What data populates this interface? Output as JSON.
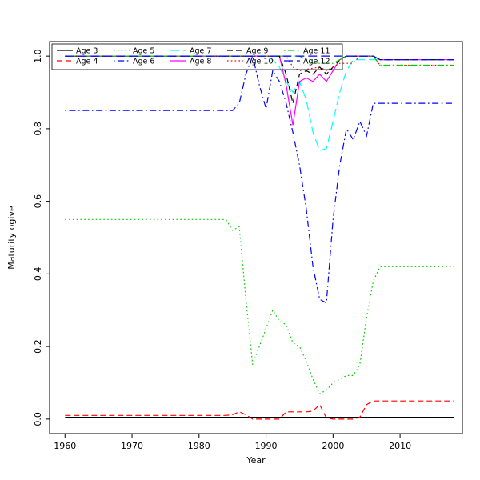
{
  "chart_data": {
    "type": "line",
    "title": "",
    "xlabel": "Year",
    "ylabel": "Maturity ogive",
    "xlim": [
      1957.7,
      2019.3
    ],
    "ylim": [
      -0.04,
      1.04
    ],
    "x_ticks": [
      1960,
      1970,
      1980,
      1990,
      2000,
      2010
    ],
    "y_ticks": [
      0.0,
      0.2,
      0.4,
      0.6,
      0.8,
      1.0
    ],
    "grid": false,
    "legend_position": "top-left",
    "legend_ncol": 5,
    "series": [
      {
        "name": "Age 3",
        "color": "#000000",
        "linestyle": "solid",
        "points": [
          [
            1960,
            0.005
          ],
          [
            2018,
            0.005
          ]
        ]
      },
      {
        "name": "Age 4",
        "color": "#FF0000",
        "linestyle": "dashed",
        "points": [
          [
            1960,
            0.01
          ],
          [
            1984,
            0.01
          ],
          [
            1985,
            0.012
          ],
          [
            1986,
            0.02
          ],
          [
            1987,
            0.012
          ],
          [
            1988,
            0
          ],
          [
            1992,
            0
          ],
          [
            1993,
            0.02
          ],
          [
            1996,
            0.02
          ],
          [
            1997,
            0.022
          ],
          [
            1998,
            0.04
          ],
          [
            1999,
            0.003
          ],
          [
            2000,
            0
          ],
          [
            2003,
            0
          ],
          [
            2004,
            0.005
          ],
          [
            2005,
            0.04
          ],
          [
            2006,
            0.05
          ],
          [
            2018,
            0.05
          ]
        ]
      },
      {
        "name": "Age 5",
        "color": "#00CD00",
        "linestyle": "dotted",
        "points": [
          [
            1960,
            0.55
          ],
          [
            1984,
            0.55
          ],
          [
            1985,
            0.52
          ],
          [
            1986,
            0.53
          ],
          [
            1987,
            0.33
          ],
          [
            1988,
            0.15
          ],
          [
            1989,
            0.2
          ],
          [
            1990,
            0.25
          ],
          [
            1991,
            0.3
          ],
          [
            1992,
            0.27
          ],
          [
            1993,
            0.26
          ],
          [
            1994,
            0.21
          ],
          [
            1995,
            0.2
          ],
          [
            1996,
            0.16
          ],
          [
            1997,
            0.11
          ],
          [
            1998,
            0.07
          ],
          [
            1999,
            0.08
          ],
          [
            2000,
            0.1
          ],
          [
            2001,
            0.11
          ],
          [
            2002,
            0.12
          ],
          [
            2003,
            0.12
          ],
          [
            2004,
            0.15
          ],
          [
            2005,
            0.28
          ],
          [
            2006,
            0.38
          ],
          [
            2007,
            0.42
          ],
          [
            2018,
            0.42
          ]
        ]
      },
      {
        "name": "Age 6",
        "color": "#0000FF",
        "linestyle": "dotdash",
        "points": [
          [
            1960,
            0.85
          ],
          [
            1985,
            0.85
          ],
          [
            1986,
            0.87
          ],
          [
            1987,
            0.95
          ],
          [
            1988,
            1
          ],
          [
            1989,
            0.92
          ],
          [
            1990,
            0.855
          ],
          [
            1991,
            0.96
          ],
          [
            1992,
            0.93
          ],
          [
            1993,
            0.87
          ],
          [
            1994,
            0.79
          ],
          [
            1995,
            0.7
          ],
          [
            1996,
            0.58
          ],
          [
            1997,
            0.42
          ],
          [
            1998,
            0.33
          ],
          [
            1999,
            0.32
          ],
          [
            2000,
            0.55
          ],
          [
            2001,
            0.7
          ],
          [
            2002,
            0.8
          ],
          [
            2003,
            0.77
          ],
          [
            2004,
            0.82
          ],
          [
            2005,
            0.78
          ],
          [
            2006,
            0.87
          ],
          [
            2018,
            0.87
          ]
        ]
      },
      {
        "name": "Age 7",
        "color": "#00FFFF",
        "linestyle": "longdash",
        "points": [
          [
            1960,
            1
          ],
          [
            1990,
            1
          ],
          [
            1991,
            0.99
          ],
          [
            1992,
            0.97
          ],
          [
            1993,
            0.93
          ],
          [
            1994,
            0.9
          ],
          [
            1995,
            0.93
          ],
          [
            1996,
            0.88
          ],
          [
            1997,
            0.79
          ],
          [
            1998,
            0.74
          ],
          [
            1999,
            0.745
          ],
          [
            2000,
            0.82
          ],
          [
            2001,
            0.9
          ],
          [
            2002,
            0.96
          ],
          [
            2003,
            0.99
          ],
          [
            2018,
            0.99
          ]
        ]
      },
      {
        "name": "Age 8",
        "color": "#FF00FF",
        "linestyle": "solid",
        "points": [
          [
            1960,
            1
          ],
          [
            1992,
            1
          ],
          [
            1993,
            0.92
          ],
          [
            1994,
            0.81
          ],
          [
            1995,
            0.93
          ],
          [
            1996,
            0.94
          ],
          [
            1997,
            0.93
          ],
          [
            1998,
            0.95
          ],
          [
            1999,
            0.93
          ],
          [
            2000,
            0.96
          ],
          [
            2001,
            0.99
          ],
          [
            2002,
            1
          ],
          [
            2006,
            1
          ],
          [
            2007,
            0.99
          ],
          [
            2018,
            0.99
          ]
        ]
      },
      {
        "name": "Age 9",
        "color": "#000000",
        "linestyle": "dashed",
        "points": [
          [
            1960,
            1
          ],
          [
            1992,
            1
          ],
          [
            1993,
            0.95
          ],
          [
            1994,
            0.87
          ],
          [
            1995,
            0.95
          ],
          [
            1996,
            0.96
          ],
          [
            1997,
            0.95
          ],
          [
            1998,
            0.97
          ],
          [
            1999,
            0.95
          ],
          [
            2000,
            0.97
          ],
          [
            2001,
            0.99
          ],
          [
            2002,
            1
          ],
          [
            2006,
            1
          ],
          [
            2007,
            0.99
          ],
          [
            2018,
            0.99
          ]
        ]
      },
      {
        "name": "Age 10",
        "color": "#FF0000",
        "linestyle": "dotted",
        "points": [
          [
            1960,
            1
          ],
          [
            1993,
            1
          ],
          [
            1994,
            0.97
          ],
          [
            1995,
            0.96
          ],
          [
            1998,
            0.97
          ],
          [
            1999,
            0.96
          ],
          [
            2000,
            0.97
          ],
          [
            2001,
            0.98
          ],
          [
            2003,
            0.98
          ],
          [
            2004,
            1
          ],
          [
            2006,
            1
          ],
          [
            2007,
            0.975
          ],
          [
            2018,
            0.975
          ]
        ]
      },
      {
        "name": "Age 11",
        "color": "#00CD00",
        "linestyle": "dotdash",
        "points": [
          [
            1960,
            1
          ],
          [
            1995,
            1
          ],
          [
            1996,
            0.99
          ],
          [
            1997,
            0.98
          ],
          [
            2000,
            0.98
          ],
          [
            2001,
            0.99
          ],
          [
            2002,
            1
          ],
          [
            2006,
            1
          ],
          [
            2007,
            0.975
          ],
          [
            2018,
            0.975
          ]
        ]
      },
      {
        "name": "Age 12",
        "color": "#0000FF",
        "linestyle": "longdash",
        "points": [
          [
            1960,
            1
          ],
          [
            2006,
            1
          ],
          [
            2007,
            0.99
          ],
          [
            2018,
            0.99
          ]
        ]
      }
    ]
  }
}
